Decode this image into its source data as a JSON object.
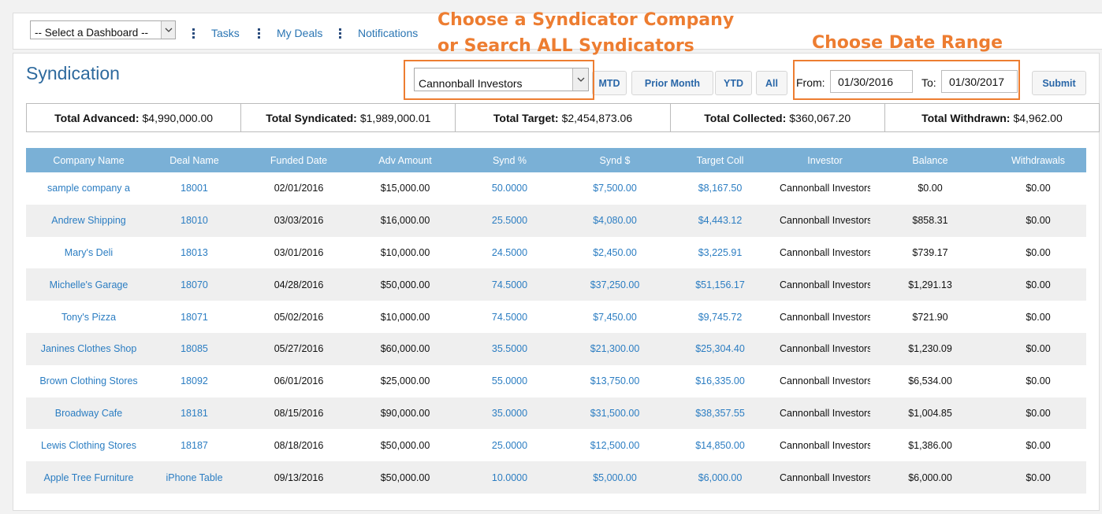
{
  "topbar": {
    "dashboard_select": "-- Select a Dashboard --",
    "links": [
      "Tasks",
      "My Deals",
      "Notifications"
    ]
  },
  "header": {
    "title": "Syndication",
    "syndicator_select": "Cannonball Investors",
    "buttons": {
      "mtd": "MTD",
      "prior_month": "Prior Month",
      "ytd": "YTD",
      "all": "All"
    },
    "from_label": "From:",
    "from_value": "01/30/2016",
    "to_label": "To:",
    "to_value": "01/30/2017",
    "submit": "Submit"
  },
  "annotations": {
    "syndicator_line1": "Choose a Syndicator Company",
    "syndicator_line2": "or Search ALL Syndicators",
    "date_range": "Choose Date Range",
    "color": "#ed7d31"
  },
  "totals": [
    {
      "label": "Total Advanced:",
      "value": "$4,990,000.00"
    },
    {
      "label": "Total Syndicated:",
      "value": "$1,989,000.01"
    },
    {
      "label": "Total Target:",
      "value": "$2,454,873.06"
    },
    {
      "label": "Total Collected:",
      "value": "$360,067.20"
    },
    {
      "label": "Total Withdrawn:",
      "value": "$4,962.00"
    }
  ],
  "table": {
    "columns": [
      "Company Name",
      "Deal Name",
      "Funded Date",
      "Adv Amount",
      "Synd %",
      "Synd $",
      "Target Coll",
      "Investor",
      "Balance",
      "Withdrawals"
    ],
    "rows": [
      [
        "sample company a",
        "18001",
        "02/01/2016",
        "$15,000.00",
        "50.0000",
        "$7,500.00",
        "$8,167.50",
        "Cannonball Investors",
        "$0.00",
        "$0.00"
      ],
      [
        "Andrew Shipping",
        "18010",
        "03/03/2016",
        "$16,000.00",
        "25.5000",
        "$4,080.00",
        "$4,443.12",
        "Cannonball Investors",
        "$858.31",
        "$0.00"
      ],
      [
        "Mary's Deli",
        "18013",
        "03/01/2016",
        "$10,000.00",
        "24.5000",
        "$2,450.00",
        "$3,225.91",
        "Cannonball Investors",
        "$739.17",
        "$0.00"
      ],
      [
        "Michelle's Garage",
        "18070",
        "04/28/2016",
        "$50,000.00",
        "74.5000",
        "$37,250.00",
        "$51,156.17",
        "Cannonball Investors",
        "$1,291.13",
        "$0.00"
      ],
      [
        "Tony's Pizza",
        "18071",
        "05/02/2016",
        "$10,000.00",
        "74.5000",
        "$7,450.00",
        "$9,745.72",
        "Cannonball Investors",
        "$721.90",
        "$0.00"
      ],
      [
        "Janines Clothes Shop",
        "18085",
        "05/27/2016",
        "$60,000.00",
        "35.5000",
        "$21,300.00",
        "$25,304.40",
        "Cannonball Investors",
        "$1,230.09",
        "$0.00"
      ],
      [
        "Brown Clothing Stores",
        "18092",
        "06/01/2016",
        "$25,000.00",
        "55.0000",
        "$13,750.00",
        "$16,335.00",
        "Cannonball Investors",
        "$6,534.00",
        "$0.00"
      ],
      [
        "Broadway Cafe",
        "18181",
        "08/15/2016",
        "$90,000.00",
        "35.0000",
        "$31,500.00",
        "$38,357.55",
        "Cannonball Investors",
        "$1,004.85",
        "$0.00"
      ],
      [
        "Lewis Clothing Stores",
        "18187",
        "08/18/2016",
        "$50,000.00",
        "25.0000",
        "$12,500.00",
        "$14,850.00",
        "Cannonball Investors",
        "$1,386.00",
        "$0.00"
      ],
      [
        "Apple Tree Furniture",
        "iPhone Table",
        "09/13/2016",
        "$50,000.00",
        "10.0000",
        "$5,000.00",
        "$6,000.00",
        "Cannonball Investors",
        "$6,000.00",
        "$0.00"
      ]
    ]
  },
  "colors": {
    "accent": "#2a75b3",
    "header_bg": "#7ab0d6",
    "link": "#2b7dc2",
    "stripe": "#efefef"
  }
}
